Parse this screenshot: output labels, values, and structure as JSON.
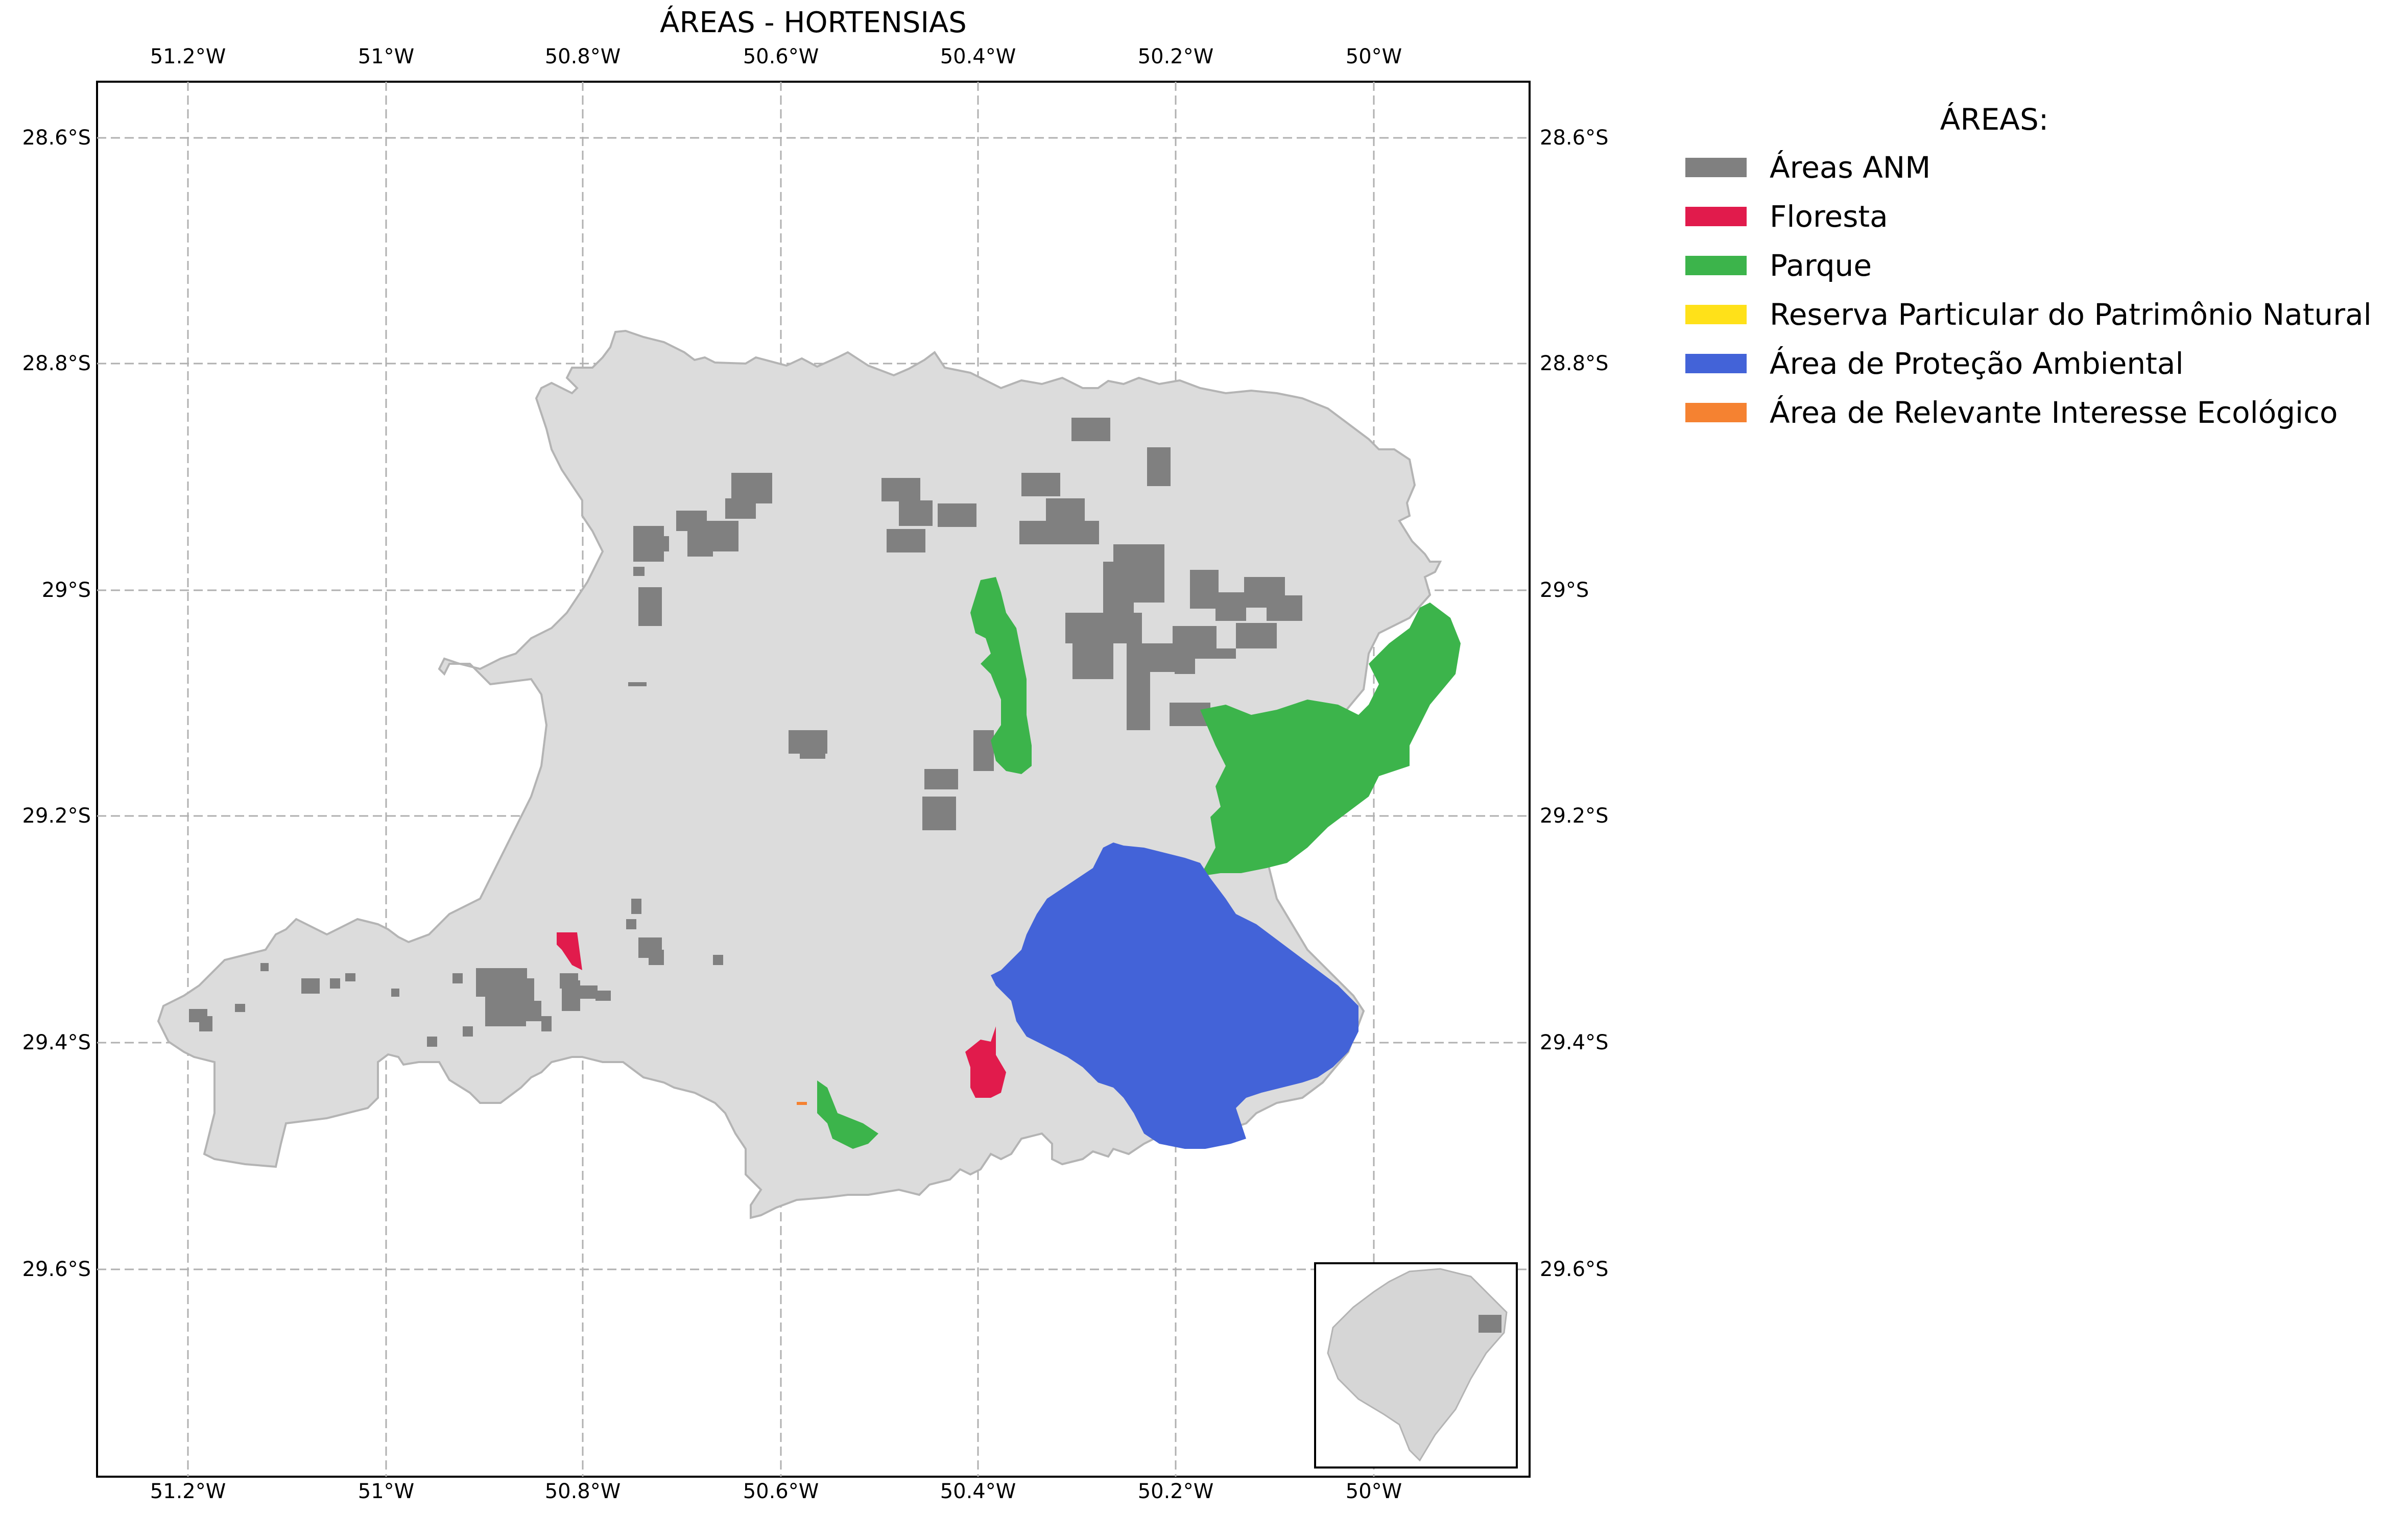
{
  "title": "ÁREAS - HORTENSIAS",
  "axes": {
    "x_ticks": [
      "51.2°W",
      "51°W",
      "50.8°W",
      "50.6°W",
      "50.4°W",
      "50.2°W",
      "50°W"
    ],
    "y_ticks": [
      "28.6°S",
      "28.8°S",
      "29°S",
      "29.2°S",
      "29.4°S",
      "29.6°S"
    ],
    "lon_range": [
      -51.29,
      -49.84
    ],
    "lat_range": [
      -29.79,
      -28.55
    ],
    "grid": true
  },
  "legend": {
    "title": "ÁREAS:",
    "items": [
      {
        "label": "Áreas ANM",
        "color": "#808080"
      },
      {
        "label": "Floresta",
        "color": "#e11b4c"
      },
      {
        "label": "Parque",
        "color": "#3cb44b"
      },
      {
        "label": "Reserva Particular do Patrimônio Natural",
        "color": "#ffe119"
      },
      {
        "label": "Área de Proteção Ambiental",
        "color": "#4363d8"
      },
      {
        "label": "Área de Relevante Interesse Ecológico",
        "color": "#f58231"
      }
    ]
  },
  "colors": {
    "region_fill": "#dcdcdc",
    "region_edge": "#b4b4b4",
    "grid": "#b0b0b0"
  },
  "inset": {
    "description_icon": "state-locator-inset"
  }
}
